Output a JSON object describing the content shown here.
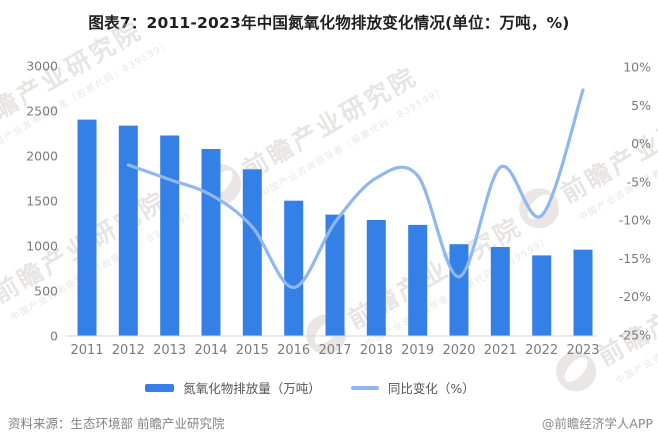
{
  "title": "图表7：2011-2023年中国氮氧化物排放变化情况(单位：万吨，%)",
  "chart_data": {
    "type": "bar",
    "subtype": "bar+line combo, dual axis",
    "title": "图表7：2011-2023年中国氮氧化物排放变化情况(单位：万吨，%)",
    "categories": [
      "2011",
      "2012",
      "2013",
      "2014",
      "2015",
      "2016",
      "2017",
      "2018",
      "2019",
      "2020",
      "2021",
      "2022",
      "2023"
    ],
    "series": [
      {
        "name": "氮氧化物排放量（万吨）",
        "type": "bar",
        "axis": "left",
        "color": "#3580e6",
        "values": [
          2404.3,
          2337.8,
          2227.4,
          2078.0,
          1851.9,
          1503.3,
          1348.4,
          1288.4,
          1233.9,
          1019.7,
          988.4,
          895.7,
          958.4
        ]
      },
      {
        "name": "同比变化（%）",
        "type": "line",
        "axis": "right",
        "color": "#8fb8ef",
        "smooth": true,
        "values": [
          null,
          -2.8,
          -4.7,
          -6.7,
          -10.9,
          -18.8,
          -10.3,
          -4.5,
          -4.2,
          -17.4,
          -3.1,
          -9.4,
          7.0
        ]
      }
    ],
    "left_axis": {
      "min": 0,
      "max": 3000,
      "tick_step": 500,
      "tick_labels": [
        "0",
        "500",
        "1000",
        "1500",
        "2000",
        "2500",
        "3000"
      ]
    },
    "right_axis": {
      "min": -25,
      "max": 10,
      "tick_step": 5,
      "tick_labels": [
        "10%",
        "5%",
        "0%",
        "-5%",
        "-10%",
        "-15%",
        "-20%",
        "-25%"
      ]
    },
    "grid": false,
    "legend_position": "bottom"
  },
  "legend": {
    "items": [
      {
        "label": "氮氧化物排放量（万吨）",
        "swatch": "bar",
        "color": "#3580e6"
      },
      {
        "label": "同比变化（%）",
        "swatch": "line",
        "color": "#8fb8ef"
      }
    ]
  },
  "footer": {
    "source": "资料来源：生态环境部 前瞻产业研究院",
    "credit": "@前瞻经济学人APP"
  },
  "watermark": {
    "brand": "前瞻产业研究院",
    "tagline": "中国产业咨询领导者（股票代码：839599）"
  },
  "colors": {
    "bar": "#3580e6",
    "line": "#8fb8ef",
    "axis_label": "#7b7b7b",
    "axis_line": "#d6d6d6",
    "title_text": "#1f1f1f",
    "legend_text": "#555555",
    "footer_text": "#828282"
  }
}
